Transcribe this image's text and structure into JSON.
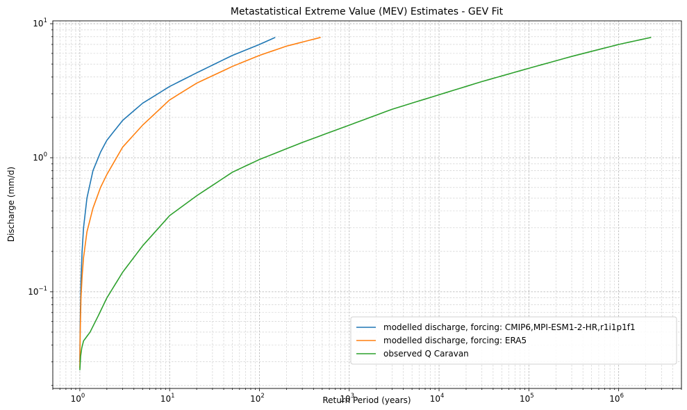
{
  "chart_data": {
    "type": "line",
    "title": "Metastatistical Extreme Value (MEV) Estimates - GEV Fit",
    "xlabel": "Return Period (years)",
    "ylabel": "Discharge (mm/d)",
    "xscale": "log",
    "yscale": "log",
    "xlim": [
      0.5,
      5000000
    ],
    "ylim": [
      0.019,
      10.5
    ],
    "grid": "both (major and minor, dashed)",
    "legend_position": "lower-right",
    "x_ticks": [
      {
        "base": "10",
        "exp": "0"
      },
      {
        "base": "10",
        "exp": "1"
      },
      {
        "base": "10",
        "exp": "2"
      },
      {
        "base": "10",
        "exp": "3"
      },
      {
        "base": "10",
        "exp": "4"
      },
      {
        "base": "10",
        "exp": "5"
      },
      {
        "base": "10",
        "exp": "6"
      }
    ],
    "y_ticks": [
      {
        "base": "10",
        "exp": "−1"
      },
      {
        "base": "10",
        "exp": "0"
      },
      {
        "base": "10",
        "exp": "1"
      }
    ],
    "series": [
      {
        "name": "modelled discharge, forcing: CMIP6,MPI-ESM1-2-HR,r1i1p1f1",
        "color": "#1f77b4",
        "points": [
          [
            1.0,
            0.03
          ],
          [
            1.01,
            0.06
          ],
          [
            1.03,
            0.12
          ],
          [
            1.06,
            0.2
          ],
          [
            1.1,
            0.3
          ],
          [
            1.2,
            0.5
          ],
          [
            1.4,
            0.8
          ],
          [
            1.7,
            1.1
          ],
          [
            2,
            1.35
          ],
          [
            3,
            1.9
          ],
          [
            5,
            2.55
          ],
          [
            10,
            3.4
          ],
          [
            20,
            4.3
          ],
          [
            50,
            5.8
          ],
          [
            100,
            7.0
          ],
          [
            150,
            7.9
          ]
        ]
      },
      {
        "name": "modelled discharge, forcing: ERA5",
        "color": "#ff7f0e",
        "points": [
          [
            1.0,
            0.027
          ],
          [
            1.01,
            0.05
          ],
          [
            1.03,
            0.09
          ],
          [
            1.06,
            0.13
          ],
          [
            1.1,
            0.18
          ],
          [
            1.2,
            0.28
          ],
          [
            1.4,
            0.42
          ],
          [
            1.7,
            0.6
          ],
          [
            2,
            0.75
          ],
          [
            3,
            1.2
          ],
          [
            5,
            1.75
          ],
          [
            10,
            2.7
          ],
          [
            20,
            3.6
          ],
          [
            50,
            4.8
          ],
          [
            100,
            5.8
          ],
          [
            200,
            6.8
          ],
          [
            480,
            7.9
          ]
        ]
      },
      {
        "name": "observed Q Caravan",
        "color": "#2ca02c",
        "points": [
          [
            1.0,
            0.026
          ],
          [
            1.02,
            0.033
          ],
          [
            1.05,
            0.038
          ],
          [
            1.1,
            0.043
          ],
          [
            1.3,
            0.05
          ],
          [
            1.6,
            0.066
          ],
          [
            2,
            0.09
          ],
          [
            3,
            0.14
          ],
          [
            5,
            0.22
          ],
          [
            10,
            0.37
          ],
          [
            20,
            0.52
          ],
          [
            50,
            0.78
          ],
          [
            100,
            0.97
          ],
          [
            300,
            1.3
          ],
          [
            1000,
            1.75
          ],
          [
            3000,
            2.3
          ],
          [
            10000,
            2.95
          ],
          [
            30000,
            3.7
          ],
          [
            100000,
            4.65
          ],
          [
            300000,
            5.7
          ],
          [
            1000000,
            7.0
          ],
          [
            2300000,
            7.9
          ]
        ]
      }
    ]
  }
}
